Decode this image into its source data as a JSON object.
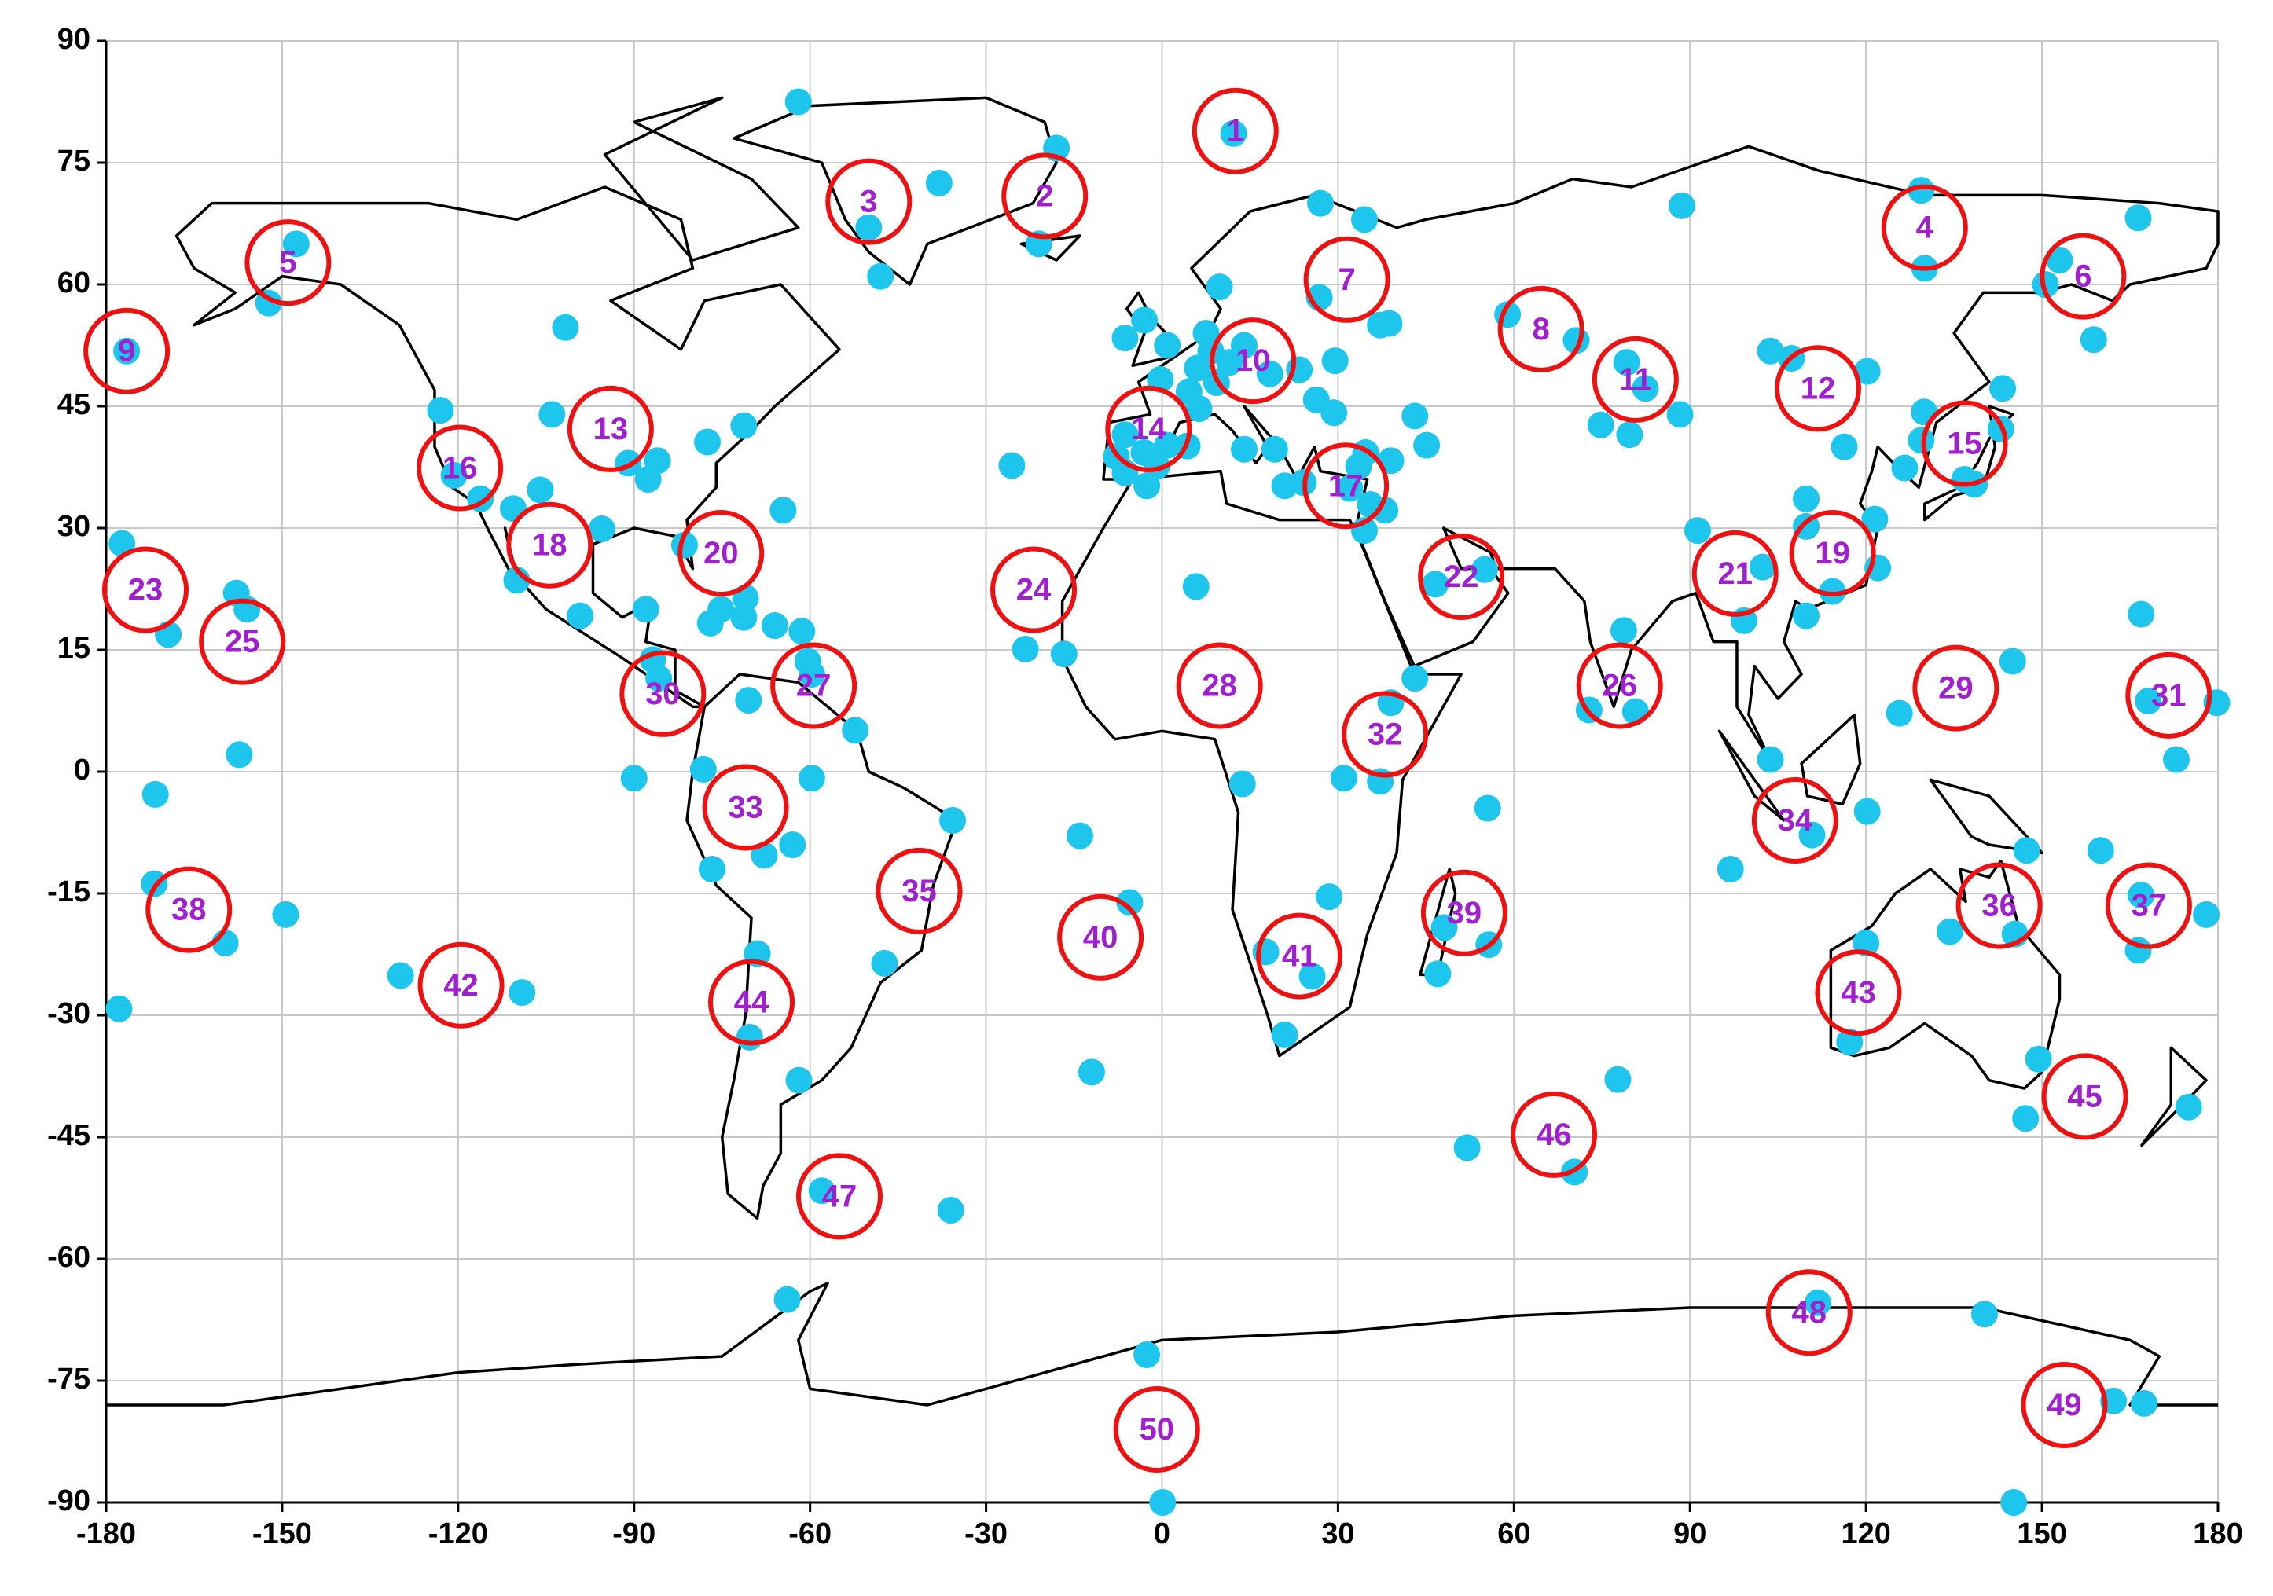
{
  "chart_data": {
    "type": "scatter",
    "xlim": [
      -180,
      180
    ],
    "ylim": [
      -90,
      90
    ],
    "xticks": [
      -180,
      -150,
      -120,
      -90,
      -60,
      -30,
      0,
      30,
      60,
      90,
      120,
      150,
      180
    ],
    "yticks": [
      -90,
      -75,
      -60,
      -45,
      -30,
      -15,
      0,
      15,
      30,
      45,
      60,
      75,
      90
    ],
    "grid": true,
    "series": [
      {
        "color": "#1ec6ee",
        "x": [
          -62,
          -18,
          12.2,
          -38,
          -50,
          -48,
          -21,
          27,
          34.5,
          88.6,
          129.4,
          130,
          166.4,
          153,
          150.6,
          158.8,
          -147.6,
          -152.3,
          -176.5,
          -123,
          -101.7,
          -104,
          -120.7,
          -116.2,
          -110.6,
          -106,
          -110,
          -95.5,
          -99.2,
          -91,
          -86,
          -87.6,
          -77.5,
          -71.3,
          -64.6,
          -81.4,
          -88,
          -86.8,
          -85.8,
          -77,
          -75.2,
          -71,
          -71.3,
          -66,
          -61.4,
          -60.4,
          -59.7,
          -70.5,
          -52.3,
          -78.2,
          -90,
          -59.7,
          -67.8,
          -63,
          -35.7,
          -76.7,
          -47.3,
          -69,
          -70.3,
          -61.9,
          -58,
          -36,
          -63.9,
          -177.3,
          -169.4,
          -171.6,
          -171.8,
          -157.8,
          -156,
          -157.3,
          -159.7,
          -149.4,
          -177.8,
          -129.8,
          -109.1,
          -25.6,
          -23.3,
          -16.7,
          5.8,
          13.7,
          -5.5,
          -14,
          -12,
          17.7,
          25.6,
          20.9,
          28.5,
          31,
          37.2,
          43.1,
          39,
          55.5,
          48.1,
          55.7,
          47,
          52,
          70.3,
          77.7,
          78.7,
          72.8,
          80.7,
          91.3,
          99.2,
          102.4,
          109.8,
          109.8,
          109.8,
          114.3,
          121.5,
          122,
          125.7,
          103.7,
          120.2,
          96.9,
          110.8,
          120,
          117.2,
          134.3,
          145.4,
          147.4,
          160,
          149.4,
          147.2,
          145,
          166.9,
          168.1,
          172.9,
          179.8,
          166.9,
          166.4,
          178,
          175,
          162.2,
          167.4,
          140.2,
          145.2,
          0.1,
          -2.6,
          111.8,
          129.4,
          129.9,
          126.6,
          136.8,
          143,
          143.3,
          138.5,
          120.2,
          116.3,
          107.3,
          103.7,
          88.3,
          79.2,
          79.7,
          74.8,
          82.4,
          70.6,
          58.9,
          37.2,
          38.7,
          29.5,
          29.3,
          43.1,
          45.1,
          39,
          34.5,
          35.5,
          46.6,
          55,
          26.3,
          24.1,
          34.7,
          26.8,
          9.8,
          -3,
          -6.3,
          0.9,
          7.5,
          8.3,
          11.5,
          14,
          18.4,
          23.4,
          6,
          9.3,
          4.6,
          -0.3,
          6.3,
          0.9,
          -6.3,
          -6.3,
          -3.1,
          -0.9,
          -7.8,
          -2.6,
          4.3,
          14,
          19.2,
          20.9,
          33.5,
          32,
          38
        ],
        "y": [
          82.5,
          76.8,
          78.6,
          72.5,
          67,
          61,
          65,
          70,
          68,
          69.7,
          71.6,
          62,
          68.2,
          63,
          60,
          53.2,
          65,
          57.7,
          51.8,
          44.5,
          54.7,
          44,
          36.5,
          33.6,
          32.4,
          34.7,
          23.6,
          29.9,
          19.2,
          38,
          38.3,
          36,
          40.6,
          42.6,
          32.2,
          27.9,
          20,
          13.8,
          11.5,
          18.3,
          20,
          21.4,
          19,
          18,
          17.3,
          13.6,
          12,
          8.8,
          5.1,
          0.3,
          -0.8,
          -0.8,
          -10.3,
          -9,
          -6,
          -12,
          -23.6,
          -22.4,
          -32.7,
          -38,
          -51.6,
          -54,
          -65,
          28.1,
          16.9,
          -2.8,
          -13.8,
          22,
          20,
          2.1,
          -21.1,
          -17.6,
          -29.2,
          -25.1,
          -27.2,
          37.7,
          15.1,
          14.5,
          22.8,
          -1.5,
          -16.1,
          -7.9,
          -37,
          -22.2,
          -25.2,
          -32.4,
          -15.4,
          -0.8,
          -1.2,
          11.5,
          8.5,
          -4.5,
          -19.2,
          -21.3,
          -24.9,
          -46.3,
          -49.3,
          -37.9,
          17.4,
          7.6,
          7.4,
          29.7,
          18.6,
          25.2,
          33.6,
          30.2,
          19.2,
          22.2,
          31.1,
          25.1,
          7.2,
          1.5,
          -4.9,
          -12,
          -7.8,
          -21.1,
          -33.3,
          -19.7,
          -20,
          -9.7,
          -9.7,
          -35.4,
          -42.7,
          13.6,
          19.4,
          8.7,
          1.5,
          8.5,
          -15.2,
          -22,
          -17.6,
          -41.3,
          -77.5,
          -77.8,
          -66.8,
          -90,
          -90,
          -71.8,
          -65.4,
          40.8,
          44.3,
          37.4,
          36,
          42.2,
          47.2,
          35.4,
          49.3,
          40,
          50.9,
          51.8,
          44,
          50.4,
          41.5,
          42.7,
          47.2,
          53.1,
          56.3,
          55,
          55.2,
          50.6,
          44.2,
          43.8,
          40.2,
          38.3,
          29.7,
          32.9,
          23.1,
          24.9,
          45.8,
          35.6,
          39.3,
          58.4,
          59.7,
          55.6,
          53.4,
          52.5,
          54,
          51.8,
          50.4,
          52.5,
          49,
          49.5,
          49.7,
          47.9,
          46.8,
          48.3,
          44.7,
          40.2,
          41.5,
          36.8,
          39.3,
          37.6,
          38.8,
          35.2,
          40.1,
          39.7,
          39.7,
          35.2,
          37.6,
          34.9,
          32.2
        ]
      },
      {
        "color": "#ee1111",
        "label_color": "#a020d0",
        "x": [
          12.5,
          -20,
          -50,
          130,
          -149,
          157,
          31.5,
          64.6,
          -176.5,
          15.5,
          80.7,
          111.8,
          -94,
          -2.3,
          136.8,
          -119.7,
          31.3,
          -104.4,
          114.3,
          -75.2,
          97.7,
          51,
          -173.3,
          -21.9,
          -156.8,
          78,
          -59.4,
          9.8,
          135.3,
          -85.1,
          171.6,
          38,
          -71,
          107.9,
          -41.4,
          142.7,
          168.2,
          -165.9,
          51.5,
          -10.5,
          23.4,
          -119.5,
          118.7,
          -70,
          157.3,
          66.8,
          -55,
          110.3,
          153.8,
          -0.9
        ],
        "y": [
          78.9,
          70.9,
          70.2,
          67,
          62.7,
          61,
          60.6,
          54.5,
          51.8,
          50.6,
          48.3,
          47.2,
          42.2,
          42.2,
          40.4,
          37.4,
          35.2,
          27.9,
          26.9,
          26.9,
          24.4,
          24,
          22.4,
          22.4,
          16,
          10.6,
          10.6,
          10.6,
          10.3,
          9.6,
          9.4,
          4.6,
          -4.4,
          -6,
          -14.7,
          -16.5,
          -16.5,
          -17,
          -17.4,
          -20.4,
          -22.7,
          -26.3,
          -27.2,
          -28.4,
          -40,
          -44.7,
          -52.3,
          -66.6,
          -78,
          -81
        ],
        "labels": [
          "1",
          "2",
          "3",
          "4",
          "5",
          "6",
          "7",
          "8",
          "9",
          "10",
          "11",
          "12",
          "13",
          "14",
          "15",
          "16",
          "17",
          "18",
          "19",
          "20",
          "21",
          "22",
          "23",
          "24",
          "25",
          "26",
          "27",
          "28",
          "29",
          "30",
          "31",
          "32",
          "33",
          "34",
          "35",
          "36",
          "37",
          "38",
          "39",
          "40",
          "41",
          "42",
          "43",
          "44",
          "45",
          "46",
          "47",
          "48",
          "49",
          "50"
        ]
      }
    ]
  }
}
